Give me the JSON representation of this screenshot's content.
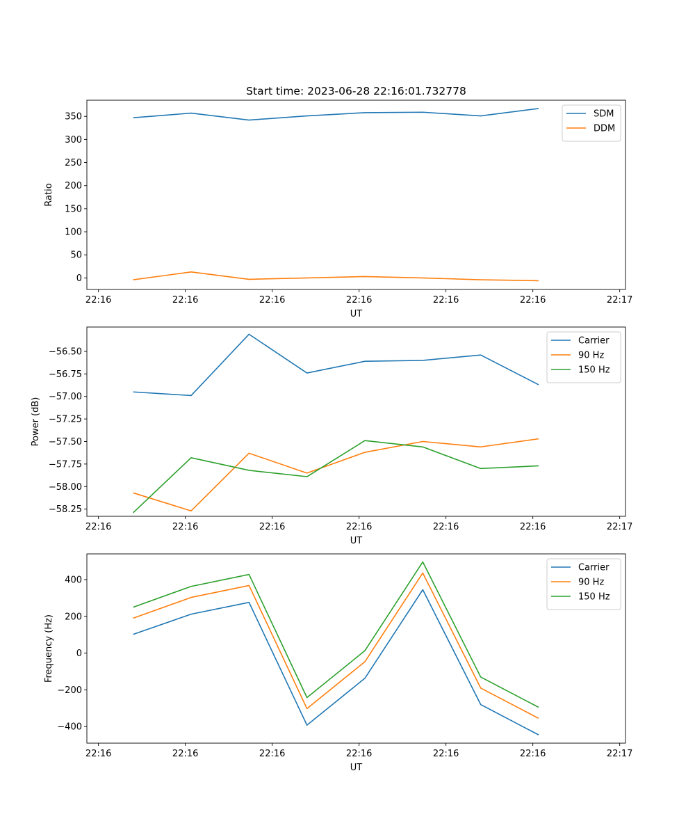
{
  "figure": {
    "title": "Start time: 2023-06-28 22:16:01.732778"
  },
  "chart_data": [
    {
      "type": "line",
      "title": "Start time: 2023-06-28 22:16:01.732778",
      "xlabel": "UT",
      "ylabel": "Ratio",
      "x": [
        1,
        2,
        3,
        4,
        5,
        6,
        7,
        8
      ],
      "xlim": [
        0.2,
        9.5
      ],
      "x_ticks": [
        0.4,
        1.9,
        3.4,
        4.9,
        6.4,
        7.9,
        9.4
      ],
      "x_tick_labels": [
        "22:16",
        "22:16",
        "22:16",
        "22:16",
        "22:16",
        "22:16",
        "22:17"
      ],
      "ylim": [
        -25,
        385
      ],
      "y_ticks": [
        0,
        50,
        100,
        150,
        200,
        250,
        300,
        350
      ],
      "y_tick_labels": [
        "0",
        "50",
        "100",
        "150",
        "200",
        "250",
        "300",
        "350"
      ],
      "legend": "top-right",
      "series": [
        {
          "name": "SDM",
          "color": "#1f77b4",
          "values": [
            347,
            357,
            342,
            351,
            358,
            359,
            351,
            367
          ]
        },
        {
          "name": "DDM",
          "color": "#ff7f0e",
          "values": [
            -4,
            13,
            -3,
            0,
            3,
            0,
            -4,
            -6
          ]
        }
      ]
    },
    {
      "type": "line",
      "xlabel": "UT",
      "ylabel": "Power (dB)",
      "x": [
        1,
        2,
        3,
        4,
        5,
        6,
        7,
        8
      ],
      "xlim": [
        0.2,
        9.5
      ],
      "x_ticks": [
        0.4,
        1.9,
        3.4,
        4.9,
        6.4,
        7.9,
        9.4
      ],
      "x_tick_labels": [
        "22:16",
        "22:16",
        "22:16",
        "22:16",
        "22:16",
        "22:16",
        "22:17"
      ],
      "ylim": [
        -58.33,
        -56.23
      ],
      "y_ticks": [
        -58.25,
        -58.0,
        -57.75,
        -57.5,
        -57.25,
        -57.0,
        -56.75,
        -56.5
      ],
      "y_tick_labels": [
        "−58.25",
        "−58.00",
        "−57.75",
        "−57.50",
        "−57.25",
        "−57.00",
        "−56.75",
        "−56.50"
      ],
      "legend": "top-right",
      "series": [
        {
          "name": "Carrier",
          "color": "#1f77b4",
          "values": [
            -56.95,
            -56.99,
            -56.31,
            -56.74,
            -56.61,
            -56.6,
            -56.54,
            -56.87
          ]
        },
        {
          "name": "90 Hz",
          "color": "#ff7f0e",
          "values": [
            -58.07,
            -58.27,
            -57.63,
            -57.85,
            -57.62,
            -57.5,
            -57.56,
            -57.47
          ]
        },
        {
          "name": "150 Hz",
          "color": "#2ca02c",
          "values": [
            -58.29,
            -57.68,
            -57.82,
            -57.89,
            -57.49,
            -57.56,
            -57.8,
            -57.77
          ]
        }
      ]
    },
    {
      "type": "line",
      "xlabel": "UT",
      "ylabel": "Frequency (Hz)",
      "x": [
        1,
        2,
        3,
        4,
        5,
        6,
        7,
        8
      ],
      "xlim": [
        0.2,
        9.5
      ],
      "x_ticks": [
        0.4,
        1.9,
        3.4,
        4.9,
        6.4,
        7.9,
        9.4
      ],
      "x_tick_labels": [
        "22:16",
        "22:16",
        "22:16",
        "22:16",
        "22:16",
        "22:16",
        "22:17"
      ],
      "ylim": [
        -490,
        540
      ],
      "y_ticks": [
        -400,
        -200,
        0,
        200,
        400
      ],
      "y_tick_labels": [
        "−400",
        "−200",
        "0",
        "200",
        "400"
      ],
      "legend": "top-right",
      "series": [
        {
          "name": "Carrier",
          "color": "#1f77b4",
          "values": [
            102,
            212,
            276,
            -392,
            -137,
            345,
            -280,
            -445
          ]
        },
        {
          "name": "90 Hz",
          "color": "#ff7f0e",
          "values": [
            190,
            303,
            368,
            -302,
            -47,
            436,
            -190,
            -355
          ]
        },
        {
          "name": "150 Hz",
          "color": "#2ca02c",
          "values": [
            250,
            363,
            428,
            -242,
            13,
            496,
            -130,
            -295
          ]
        }
      ]
    }
  ]
}
